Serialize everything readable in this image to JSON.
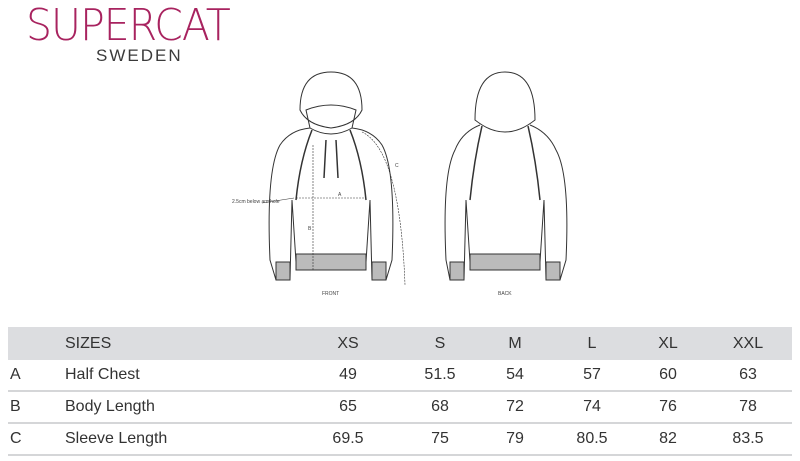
{
  "logo": {
    "brand": "SUPERCAT",
    "country": "SWEDEN",
    "color": "#a8235f"
  },
  "diagram": {
    "front_label": "FRONT",
    "back_label": "BACK",
    "note": "2.5cm below armhole",
    "labels": {
      "a": "A",
      "b": "B",
      "c": "C"
    }
  },
  "table": {
    "header": {
      "key": "",
      "label": "SIZES",
      "sizes": [
        "XS",
        "S",
        "M",
        "L",
        "XL",
        "XXL"
      ]
    },
    "rows": [
      {
        "key": "A",
        "label": "Half Chest",
        "values": [
          "49",
          "51.5",
          "54",
          "57",
          "60",
          "63"
        ]
      },
      {
        "key": "B",
        "label": "Body Length",
        "values": [
          "65",
          "68",
          "72",
          "74",
          "76",
          "78"
        ]
      },
      {
        "key": "C",
        "label": "Sleeve Length",
        "values": [
          "69.5",
          "75",
          "79",
          "80.5",
          "82",
          "83.5"
        ]
      }
    ]
  }
}
